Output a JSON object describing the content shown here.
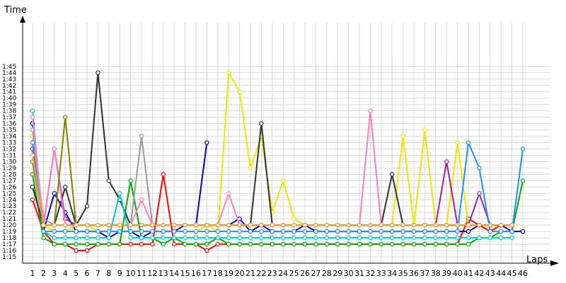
{
  "chart_data": {
    "type": "line",
    "title": "",
    "xlabel": "Laps",
    "ylabel": "Time",
    "x": [
      1,
      2,
      3,
      4,
      5,
      6,
      7,
      8,
      9,
      10,
      11,
      12,
      13,
      14,
      15,
      16,
      17,
      18,
      19,
      20,
      21,
      22,
      23,
      24,
      25,
      26,
      27,
      28,
      29,
      30,
      31,
      32,
      33,
      34,
      35,
      36,
      37,
      38,
      39,
      40,
      41,
      42,
      43,
      44,
      45,
      46
    ],
    "x_ticks": [
      "1",
      "2",
      "3",
      "4",
      "5",
      "6",
      "7",
      "8",
      "9",
      "10",
      "11",
      "12",
      "13",
      "14",
      "15",
      "16",
      "17",
      "18",
      "19",
      "20",
      "21",
      "22",
      "23",
      "24",
      "25",
      "26",
      "27",
      "28",
      "29",
      "30",
      "31",
      "32",
      "33",
      "34",
      "35",
      "36",
      "37",
      "38",
      "39",
      "40",
      "41",
      "42",
      "43",
      "44",
      "45",
      "46"
    ],
    "y_ticks": [
      "1:15",
      "1:16",
      "1:17",
      "1:18",
      "1:19",
      "1:20",
      "1:21",
      "1:22",
      "1:23",
      "1:24",
      "1:25",
      "1:26",
      "1:27",
      "1:28",
      "1:29",
      "1:30",
      "1:31",
      "1:32",
      "1:33",
      "1:34",
      "1:35",
      "1:36",
      "1:37",
      "1:38",
      "1:39",
      "1:40",
      "1:41",
      "1:42",
      "1:43",
      "1:44",
      "1:45"
    ],
    "ylim_seconds": [
      74,
      111
    ],
    "grid": true,
    "legend": "none",
    "series": [
      {
        "color": "#ff0000",
        "values": [
          84,
          79,
          77,
          77,
          76,
          76,
          77,
          77,
          77,
          77,
          77,
          77,
          88,
          77,
          77,
          77,
          76,
          77,
          77,
          77,
          77,
          77,
          77,
          77,
          77,
          77,
          77,
          77,
          77,
          77,
          77,
          77,
          77,
          77,
          77,
          77,
          77,
          77,
          77,
          77,
          81,
          80,
          79,
          80,
          80,
          null
        ]
      },
      {
        "color": "#0000cc",
        "values": [
          96,
          79,
          85,
          82,
          79,
          79,
          79,
          78,
          79,
          79,
          78,
          79,
          79,
          79,
          80,
          80,
          93,
          null,
          80,
          81,
          79,
          80,
          79,
          79,
          79,
          80,
          79,
          79,
          79,
          79,
          79,
          79,
          79,
          79,
          79,
          79,
          79,
          79,
          79,
          79,
          79,
          80,
          80,
          80,
          79,
          79
        ]
      },
      {
        "color": "#00aa00",
        "values": [
          88,
          78,
          77,
          77,
          77,
          77,
          77,
          77,
          77,
          87,
          78,
          78,
          77,
          78,
          77,
          77,
          77,
          78,
          77,
          77,
          77,
          77,
          77,
          77,
          77,
          77,
          77,
          77,
          77,
          77,
          77,
          77,
          77,
          77,
          77,
          77,
          77,
          77,
          77,
          77,
          77,
          78,
          78,
          79,
          79,
          87
        ]
      },
      {
        "color": "#e8e800",
        "values": [
          94,
          80,
          79,
          79,
          80,
          80,
          79,
          79,
          79,
          79,
          79,
          79,
          79,
          79,
          79,
          79,
          80,
          79,
          104,
          101,
          89,
          94,
          82,
          87,
          81,
          80,
          80,
          80,
          80,
          80,
          80,
          80,
          80,
          80,
          94,
          80,
          95,
          80,
          80,
          93,
          80,
          80,
          80,
          80,
          80,
          null
        ]
      },
      {
        "color": "#a020a0",
        "values": [
          92,
          80,
          92,
          81,
          80,
          80,
          80,
          80,
          80,
          80,
          80,
          80,
          80,
          80,
          80,
          80,
          80,
          80,
          80,
          80,
          80,
          80,
          80,
          80,
          80,
          80,
          80,
          80,
          80,
          80,
          80,
          80,
          80,
          80,
          80,
          80,
          80,
          80,
          90,
          80,
          80,
          85,
          80,
          80,
          80,
          null
        ]
      },
      {
        "color": "#303030",
        "values": [
          86,
          80,
          80,
          86,
          80,
          83,
          104,
          87,
          84,
          80,
          80,
          80,
          80,
          80,
          80,
          80,
          80,
          80,
          80,
          80,
          80,
          96,
          80,
          80,
          80,
          80,
          80,
          80,
          80,
          80,
          80,
          80,
          80,
          88,
          80,
          80,
          80,
          80,
          80,
          80,
          80,
          80,
          80,
          80,
          80,
          null
        ]
      },
      {
        "color": "#00cccc",
        "values": [
          98,
          79,
          78,
          78,
          78,
          78,
          78,
          78,
          85,
          78,
          78,
          78,
          78,
          78,
          78,
          78,
          78,
          78,
          78,
          78,
          78,
          78,
          78,
          78,
          78,
          78,
          78,
          78,
          78,
          78,
          78,
          78,
          78,
          78,
          78,
          78,
          78,
          78,
          78,
          78,
          78,
          78,
          78,
          78,
          78,
          null
        ]
      },
      {
        "color": "#999999",
        "values": [
          95,
          81,
          80,
          80,
          80,
          80,
          80,
          80,
          80,
          80,
          94,
          80,
          80,
          80,
          80,
          80,
          80,
          80,
          80,
          80,
          80,
          80,
          80,
          80,
          80,
          80,
          80,
          80,
          80,
          80,
          80,
          80,
          80,
          80,
          80,
          80,
          80,
          80,
          80,
          80,
          80,
          80,
          80,
          80,
          80,
          null
        ]
      },
      {
        "color": "#ff7fbf",
        "values": [
          97,
          80,
          92,
          80,
          80,
          80,
          80,
          80,
          80,
          80,
          84,
          80,
          80,
          80,
          80,
          80,
          80,
          80,
          85,
          80,
          80,
          80,
          80,
          80,
          80,
          80,
          80,
          80,
          80,
          80,
          80,
          98,
          80,
          80,
          80,
          80,
          80,
          80,
          80,
          80,
          80,
          80,
          80,
          80,
          80,
          null
        ]
      },
      {
        "color": "#1e90ff",
        "values": [
          93,
          79,
          79,
          79,
          79,
          79,
          79,
          79,
          79,
          79,
          79,
          79,
          79,
          79,
          79,
          79,
          79,
          79,
          79,
          79,
          79,
          79,
          79,
          79,
          79,
          79,
          79,
          79,
          79,
          79,
          79,
          79,
          79,
          79,
          79,
          79,
          79,
          79,
          79,
          79,
          93,
          89,
          79,
          79,
          79,
          92
        ]
      },
      {
        "color": "#808000",
        "values": [
          90,
          80,
          80,
          97,
          80,
          80,
          80,
          80,
          80,
          80,
          80,
          80,
          80,
          80,
          80,
          80,
          80,
          80,
          80,
          80,
          80,
          80,
          80,
          80,
          80,
          80,
          80,
          80,
          80,
          80,
          80,
          80,
          80,
          80,
          80,
          80,
          80,
          80,
          80,
          80,
          80,
          80,
          80,
          80,
          80,
          null
        ]
      },
      {
        "color": "#ff9933",
        "values": [
          91,
          80,
          80,
          80,
          80,
          80,
          80,
          80,
          80,
          80,
          80,
          80,
          80,
          80,
          80,
          80,
          80,
          80,
          80,
          80,
          80,
          80,
          80,
          80,
          80,
          80,
          80,
          80,
          80,
          80,
          80,
          80,
          80,
          80,
          80,
          80,
          80,
          80,
          80,
          80,
          80,
          80,
          80,
          80,
          80,
          null
        ]
      }
    ]
  }
}
